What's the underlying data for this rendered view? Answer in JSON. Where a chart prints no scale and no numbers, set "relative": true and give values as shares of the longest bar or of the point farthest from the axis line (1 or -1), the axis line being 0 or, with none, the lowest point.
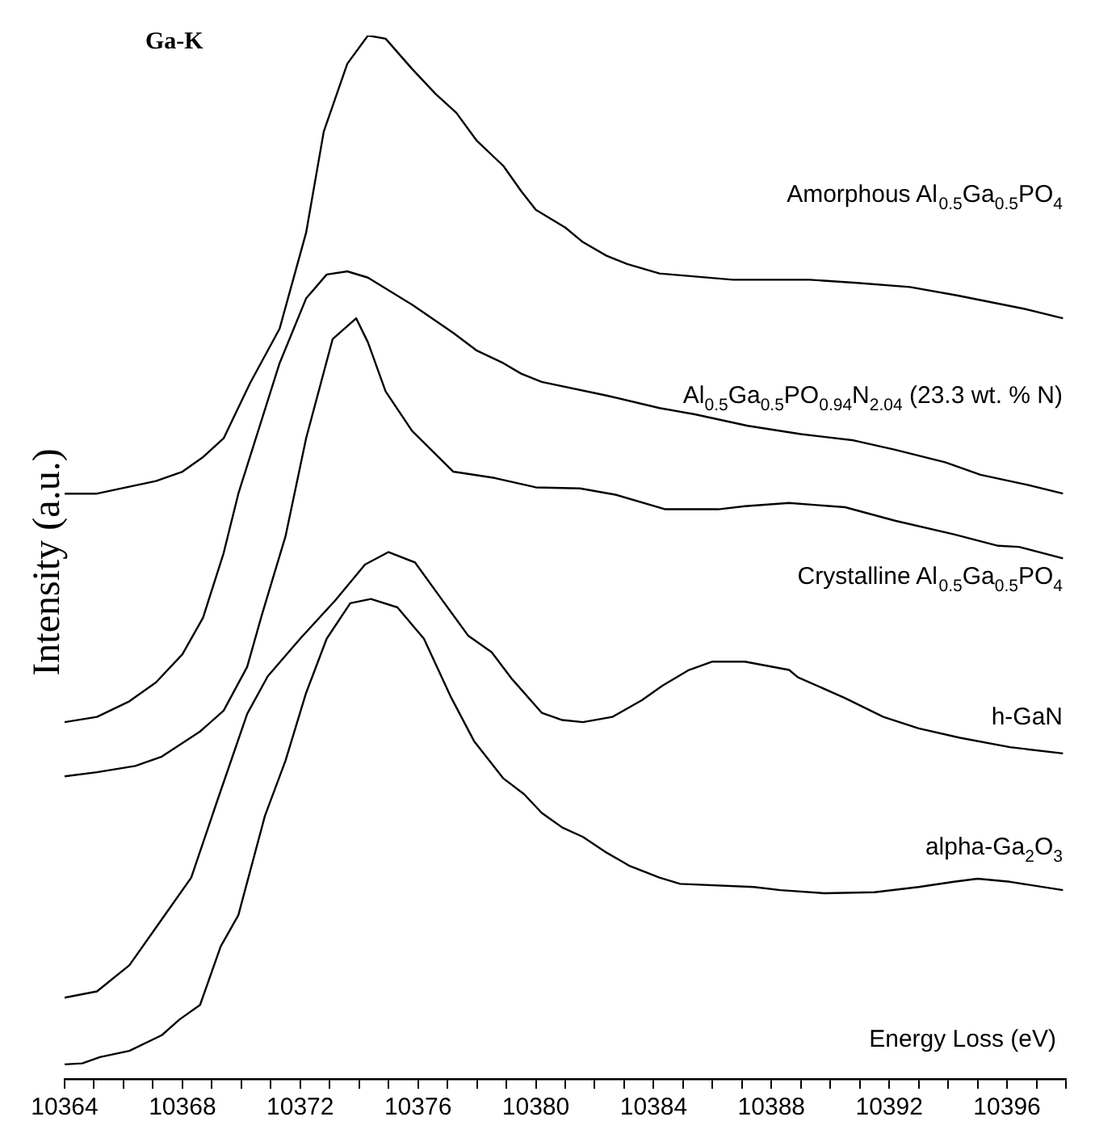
{
  "chart_data": {
    "type": "line",
    "title": "Ga-K",
    "xlabel": "Energy Loss (eV)",
    "ylabel": "Intensity (a.u.)",
    "relative": true,
    "legend": false,
    "grid": false,
    "marker": "none",
    "line_style": "solid",
    "xlim": [
      10364,
      10398
    ],
    "xticks": [
      10364,
      {
        "value": 10365,
        "label": null
      },
      {
        "value": 10366,
        "label": null
      },
      {
        "value": 10367,
        "label": null
      },
      10368,
      {
        "value": 10369,
        "label": null
      },
      {
        "value": 10370,
        "label": null
      },
      {
        "value": 10371,
        "label": null
      },
      10372,
      {
        "value": 10373,
        "label": null
      },
      {
        "value": 10374,
        "label": null
      },
      {
        "value": 10375,
        "label": null
      },
      10376,
      {
        "value": 10377,
        "label": null
      },
      {
        "value": 10378,
        "label": null
      },
      {
        "value": 10379,
        "label": null
      },
      10380,
      {
        "value": 10381,
        "label": null
      },
      {
        "value": 10382,
        "label": null
      },
      {
        "value": 10383,
        "label": null
      },
      10384,
      {
        "value": 10385,
        "label": null
      },
      {
        "value": 10386,
        "label": null
      },
      {
        "value": 10387,
        "label": null
      },
      10388,
      {
        "value": 10389,
        "label": null
      },
      {
        "value": 10390,
        "label": null
      },
      {
        "value": 10391,
        "label": null
      },
      10392,
      {
        "value": 10393,
        "label": null
      },
      {
        "value": 10394,
        "label": null
      },
      {
        "value": 10395,
        "label": null
      },
      10396,
      {
        "value": 10397,
        "label": null
      },
      {
        "value": 10398,
        "label": null
      }
    ],
    "series": [
      {
        "name": "Amorphous Al$_{0.5}$Ga$_{0.5}$PO$_{4}$",
        "color": "#000000",
        "x": [
          10364.0,
          10365.1,
          10367.1,
          10368.0,
          10368.7,
          10369.4,
          10370.3,
          10371.3,
          10372.2,
          10372.8,
          10373.6,
          10374.3,
          10374.9,
          10375.8,
          10376.6,
          10377.3,
          10378.0,
          10378.9,
          10379.5,
          10380.0,
          10381.0,
          10381.6,
          10382.4,
          10383.1,
          10384.2,
          10386.7,
          10389.3,
          10390.9,
          10392.7,
          10394.3,
          10396.6,
          10397.9
        ],
        "values": [
          0.561,
          0.561,
          0.573,
          0.582,
          0.596,
          0.614,
          0.667,
          0.719,
          0.811,
          0.908,
          0.973,
          1.0,
          0.997,
          0.968,
          0.944,
          0.926,
          0.899,
          0.875,
          0.851,
          0.833,
          0.816,
          0.802,
          0.789,
          0.781,
          0.772,
          0.766,
          0.766,
          0.763,
          0.759,
          0.751,
          0.738,
          0.729
        ]
      },
      {
        "name": "Al$_{0.5}$Ga$_{0.5}$PO$_{0.94}$N$_{2.04}$ (23.3 wt. % N)",
        "color": "#000000",
        "x": [
          10364.0,
          10365.1,
          10366.2,
          10367.1,
          10368.0,
          10368.7,
          10369.4,
          10369.9,
          10371.3,
          10372.2,
          10372.9,
          10373.6,
          10374.3,
          10375.8,
          10377.2,
          10378.0,
          10378.9,
          10379.5,
          10380.2,
          10382.4,
          10384.2,
          10385.4,
          10387.2,
          10389.0,
          10390.8,
          10392.2,
          10393.9,
          10395.1,
          10396.6,
          10397.9
        ],
        "values": [
          0.342,
          0.347,
          0.362,
          0.38,
          0.407,
          0.442,
          0.504,
          0.561,
          0.686,
          0.748,
          0.771,
          0.774,
          0.768,
          0.742,
          0.715,
          0.698,
          0.686,
          0.676,
          0.668,
          0.655,
          0.643,
          0.637,
          0.626,
          0.618,
          0.612,
          0.603,
          0.591,
          0.579,
          0.57,
          0.561
        ]
      },
      {
        "name": "Crystalline Al$_{0.5}$Ga$_{0.5}$PO$_{4}$",
        "color": "#000000",
        "x": [
          10364.0,
          10365.1,
          10366.4,
          10367.3,
          10368.6,
          10369.4,
          10370.2,
          10370.7,
          10371.5,
          10372.2,
          10373.1,
          10373.9,
          10374.3,
          10374.9,
          10375.8,
          10377.2,
          10378.6,
          10380.0,
          10381.5,
          10382.7,
          10384.4,
          10386.2,
          10387.1,
          10388.6,
          10390.5,
          10392.2,
          10394.2,
          10395.7,
          10396.4,
          10397.9
        ],
        "values": [
          0.29,
          0.294,
          0.3,
          0.309,
          0.333,
          0.353,
          0.395,
          0.445,
          0.52,
          0.614,
          0.709,
          0.729,
          0.706,
          0.659,
          0.621,
          0.582,
          0.576,
          0.567,
          0.566,
          0.56,
          0.546,
          0.546,
          0.549,
          0.552,
          0.548,
          0.535,
          0.522,
          0.511,
          0.51,
          0.499
        ]
      },
      {
        "name": "h-GaN",
        "color": "#000000",
        "x": [
          10364.0,
          10365.1,
          10366.2,
          10367.2,
          10368.3,
          10369.2,
          10370.2,
          10370.9,
          10372.0,
          10373.2,
          10374.2,
          10375.0,
          10375.9,
          10376.9,
          10377.7,
          10378.5,
          10379.2,
          10380.2,
          10380.9,
          10381.6,
          10382.6,
          10383.6,
          10384.3,
          10385.2,
          10386.0,
          10387.1,
          10388.6,
          10388.9,
          10390.5,
          10391.8,
          10393.0,
          10394.4,
          10396.1,
          10397.9
        ],
        "values": [
          0.078,
          0.084,
          0.109,
          0.149,
          0.193,
          0.268,
          0.35,
          0.386,
          0.422,
          0.459,
          0.493,
          0.505,
          0.495,
          0.456,
          0.425,
          0.409,
          0.383,
          0.351,
          0.344,
          0.342,
          0.347,
          0.363,
          0.377,
          0.392,
          0.4,
          0.4,
          0.392,
          0.385,
          0.365,
          0.347,
          0.336,
          0.327,
          0.318,
          0.312
        ]
      },
      {
        "name": "alpha-Ga$_{2}$O$_{3}$",
        "color": "#000000",
        "x": [
          10364.0,
          10364.6,
          10365.2,
          10366.2,
          10367.3,
          10367.9,
          10368.6,
          10368.8,
          10369.3,
          10369.9,
          10370.8,
          10371.5,
          10372.2,
          10372.9,
          10373.7,
          10374.4,
          10375.3,
          10376.2,
          10377.1,
          10377.9,
          10378.9,
          10379.6,
          10380.2,
          10380.9,
          10381.6,
          10382.4,
          10383.2,
          10384.2,
          10384.9,
          10387.4,
          10388.3,
          10389.8,
          10391.5,
          10393.0,
          10394.2,
          10395.0,
          10396.1,
          10397.9
        ],
        "values": [
          0.014,
          0.015,
          0.021,
          0.027,
          0.042,
          0.057,
          0.071,
          0.087,
          0.127,
          0.157,
          0.252,
          0.305,
          0.37,
          0.422,
          0.456,
          0.46,
          0.452,
          0.422,
          0.367,
          0.324,
          0.288,
          0.273,
          0.255,
          0.241,
          0.232,
          0.217,
          0.204,
          0.193,
          0.187,
          0.184,
          0.181,
          0.178,
          0.179,
          0.184,
          0.189,
          0.192,
          0.189,
          0.181
        ]
      }
    ]
  }
}
